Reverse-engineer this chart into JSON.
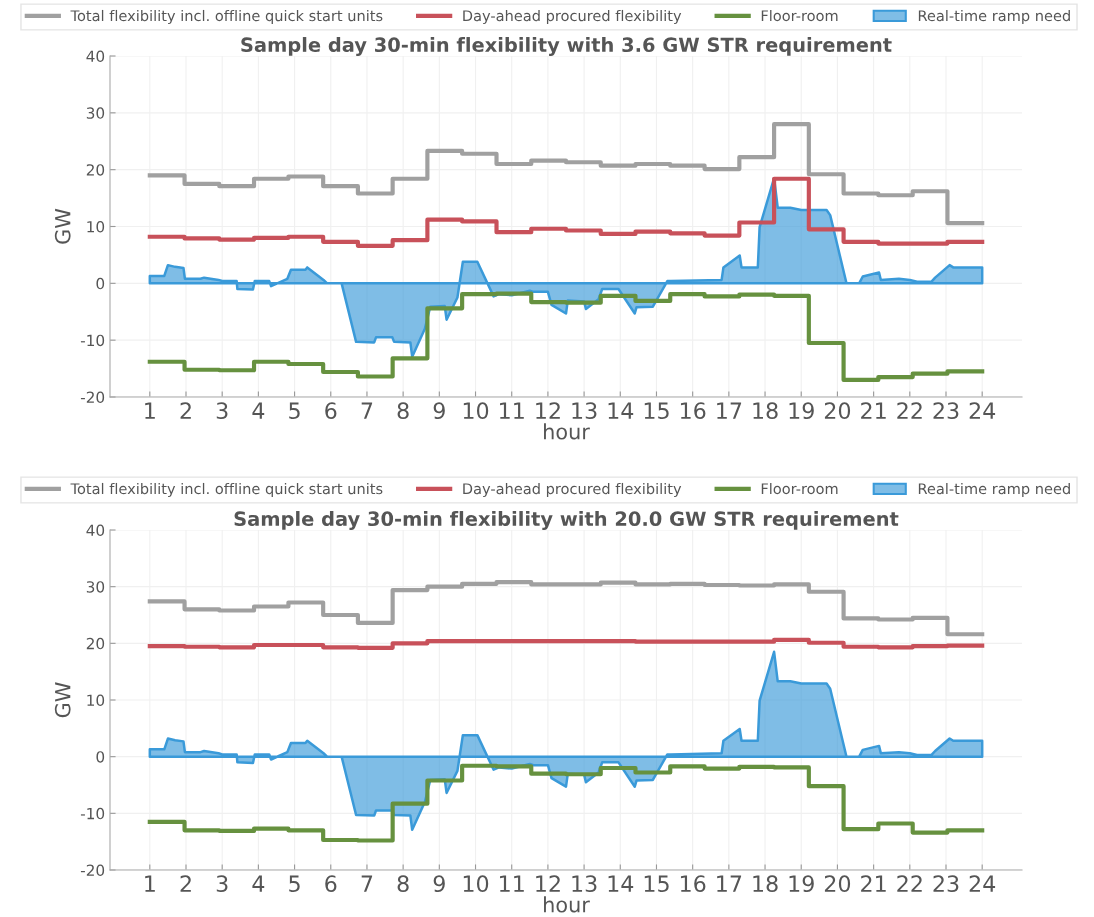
{
  "chart_data": [
    {
      "type": "line",
      "title": "Sample day 30-min flexibility with 3.6 GW STR requirement",
      "xlabel": "hour",
      "ylabel": "GW",
      "xlim": [
        -0.1,
        25.1
      ],
      "xticks": [
        1,
        2,
        3,
        4,
        5,
        6,
        7,
        8,
        9,
        10,
        11,
        12,
        13,
        14,
        15,
        16,
        17,
        18,
        19,
        20,
        21,
        22,
        23,
        24
      ],
      "ylim": [
        -20,
        40
      ],
      "yticks": [
        -20,
        -10,
        0,
        10,
        20,
        30,
        40
      ],
      "grid": true,
      "legend": "top",
      "series": [
        {
          "name": "Total flexibility incl. offline quick start units",
          "type": "step",
          "color": "#a0a0a0",
          "x": [
            1,
            1.96,
            2.92,
            3.88,
            4.83,
            5.79,
            6.75,
            7.71,
            8.67,
            9.63,
            10.58,
            11.54,
            12.5,
            13.46,
            14.42,
            15.38,
            16.33,
            17.29,
            18.25,
            19.21,
            20.17,
            21.13,
            22.08,
            23.04,
            24
          ],
          "values": [
            19,
            17.5,
            17.1,
            18.4,
            18.8,
            17.1,
            15.8,
            18.4,
            23.3,
            22.8,
            21,
            21.6,
            21.3,
            20.7,
            21,
            20.7,
            20.1,
            22.2,
            28,
            19.2,
            15.8,
            15.5,
            16.2,
            10.6,
            10.6
          ]
        },
        {
          "name": "Day-ahead procured flexibility",
          "type": "step",
          "color": "#c8515a",
          "x": [
            1,
            1.96,
            2.92,
            3.88,
            4.83,
            5.79,
            6.75,
            7.71,
            8.67,
            9.63,
            10.58,
            11.54,
            12.5,
            13.46,
            14.42,
            15.38,
            16.33,
            17.29,
            18.25,
            19.21,
            20.17,
            21.13,
            22.08,
            23.04,
            24
          ],
          "values": [
            8.2,
            7.9,
            7.7,
            8,
            8.2,
            7.3,
            6.6,
            7.6,
            11.2,
            10.9,
            9,
            9.6,
            9.3,
            8.7,
            9.1,
            8.8,
            8.4,
            10.7,
            18.4,
            9.5,
            7.3,
            7,
            7,
            7.3,
            7.3
          ]
        },
        {
          "name": "Floor-room",
          "type": "step",
          "color": "#66913f",
          "x": [
            1,
            1.96,
            2.92,
            3.88,
            4.83,
            5.79,
            6.75,
            7.71,
            8.67,
            9.63,
            10.58,
            11.54,
            12.5,
            13.46,
            14.42,
            15.38,
            16.33,
            17.29,
            18.25,
            19.21,
            20.17,
            21.13,
            22.08,
            23.04,
            24
          ],
          "values": [
            -13.8,
            -15.2,
            -15.3,
            -13.8,
            -14.2,
            -15.6,
            -16.4,
            -13.2,
            -4.4,
            -1.9,
            -1.8,
            -3.3,
            -3.4,
            -2.2,
            -3.1,
            -1.9,
            -2.3,
            -2,
            -2.2,
            -10.5,
            -17,
            -16.5,
            -15.9,
            -15.5,
            -15.5
          ]
        },
        {
          "name": "Real-time ramp need",
          "type": "area",
          "color": "#3a9ad9",
          "x": [
            1,
            1.4,
            1.5,
            1.7,
            1.93,
            1.97,
            2.4,
            2.5,
            2.9,
            3,
            3.4,
            3.42,
            3.85,
            3.9,
            4.3,
            4.35,
            4.8,
            4.9,
            5.3,
            5.35,
            5.8,
            5.9,
            6.3,
            6.7,
            7.2,
            7.25,
            7.7,
            7.75,
            8.2,
            8.25,
            8.6,
            8.75,
            9.15,
            9.2,
            9.5,
            9.65,
            10.05,
            10.5,
            10.65,
            11,
            11.5,
            11.6,
            12,
            12.1,
            12.5,
            12.55,
            13,
            13.05,
            13.4,
            13.5,
            13.95,
            14.4,
            14.45,
            14.9,
            15.3,
            15.4,
            16.8,
            16.85,
            17.3,
            17.35,
            17.8,
            17.85,
            18.25,
            18.35,
            18.7,
            19,
            19.7,
            19.8,
            20.25,
            20.6,
            20.7,
            21.15,
            21.2,
            21.7,
            22,
            22.2,
            22.6,
            22.7,
            23.1,
            23.2,
            24
          ],
          "values": [
            1.3,
            1.3,
            3.2,
            2.9,
            2.7,
            0.8,
            0.8,
            1,
            0.6,
            0.4,
            0.4,
            -1,
            -1.1,
            0.4,
            0.4,
            -0.5,
            0.8,
            2.4,
            2.4,
            2.8,
            0.6,
            0,
            0,
            -10.3,
            -10.4,
            -9.5,
            -9.5,
            -10.3,
            -10.4,
            -12.9,
            -8,
            -4.1,
            -4,
            -6.4,
            -2.5,
            3.8,
            3.8,
            -2.3,
            -1.9,
            -2.1,
            -1.3,
            -1.5,
            -1.5,
            -3.8,
            -5.3,
            -3,
            -3.2,
            -4.5,
            -2.8,
            -1,
            -1,
            -5.3,
            -4.2,
            -4.1,
            0.4,
            0.4,
            0.6,
            2.8,
            4.9,
            2.8,
            2.8,
            9.9,
            18.5,
            13.3,
            13.3,
            12.9,
            12.9,
            12,
            0,
            0,
            1.2,
            1.9,
            0.6,
            0.8,
            0.6,
            0.3,
            0.3,
            1,
            3.2,
            2.8,
            2.8
          ]
        }
      ]
    },
    {
      "type": "line",
      "title": "Sample day 30-min flexibility with 20.0 GW STR requirement",
      "xlabel": "hour",
      "ylabel": "GW",
      "xlim": [
        -0.1,
        25.1
      ],
      "xticks": [
        1,
        2,
        3,
        4,
        5,
        6,
        7,
        8,
        9,
        10,
        11,
        12,
        13,
        14,
        15,
        16,
        17,
        18,
        19,
        20,
        21,
        22,
        23,
        24
      ],
      "ylim": [
        -20,
        40
      ],
      "yticks": [
        -20,
        -10,
        0,
        10,
        20,
        30,
        40
      ],
      "grid": true,
      "legend": "top",
      "series": [
        {
          "name": "Total flexibility incl. offline quick start units",
          "type": "step",
          "color": "#a0a0a0",
          "x": [
            1,
            1.96,
            2.92,
            3.88,
            4.83,
            5.79,
            6.75,
            7.71,
            8.67,
            9.63,
            10.58,
            11.54,
            12.5,
            13.46,
            14.42,
            15.38,
            16.33,
            17.29,
            18.25,
            19.21,
            20.17,
            21.13,
            22.08,
            23.04,
            24
          ],
          "values": [
            27.4,
            26,
            25.8,
            26.5,
            27.2,
            25,
            23.6,
            29.4,
            30,
            30.5,
            30.8,
            30.4,
            30.4,
            30.7,
            30.4,
            30.5,
            30.3,
            30.2,
            30.4,
            29.1,
            24.4,
            24.2,
            24.5,
            21.6,
            21.6
          ]
        },
        {
          "name": "Day-ahead procured flexibility",
          "type": "step",
          "color": "#c8515a",
          "x": [
            1,
            1.96,
            2.92,
            3.88,
            4.83,
            5.79,
            6.75,
            7.71,
            8.67,
            9.63,
            10.58,
            11.54,
            12.5,
            13.46,
            14.42,
            15.38,
            16.33,
            17.29,
            18.25,
            19.21,
            20.17,
            21.13,
            22.08,
            23.04,
            24
          ],
          "values": [
            19.5,
            19.4,
            19.3,
            19.7,
            19.7,
            19.3,
            19.2,
            20,
            20.4,
            20.4,
            20.4,
            20.4,
            20.4,
            20.4,
            20.3,
            20.3,
            20.3,
            20.3,
            20.6,
            20.1,
            19.4,
            19.3,
            19.5,
            19.6,
            19.6
          ]
        },
        {
          "name": "Floor-room",
          "type": "step",
          "color": "#66913f",
          "x": [
            1,
            1.96,
            2.92,
            3.88,
            4.83,
            5.79,
            6.75,
            7.71,
            8.67,
            9.63,
            10.58,
            11.54,
            12.5,
            13.46,
            14.42,
            15.38,
            16.33,
            17.29,
            18.25,
            19.21,
            20.17,
            21.13,
            22.08,
            23.04,
            24
          ],
          "values": [
            -11.5,
            -13,
            -13.1,
            -12.7,
            -13,
            -14.7,
            -14.8,
            -8.3,
            -4.2,
            -1.6,
            -1.7,
            -3,
            -3.1,
            -2,
            -2.8,
            -1.7,
            -2.1,
            -1.8,
            -1.9,
            -5.2,
            -12.8,
            -11.8,
            -13.4,
            -13,
            -13
          ]
        },
        {
          "name": "Real-time ramp need",
          "type": "area",
          "color": "#3a9ad9",
          "x": [
            1,
            1.4,
            1.5,
            1.7,
            1.93,
            1.97,
            2.4,
            2.5,
            2.9,
            3,
            3.4,
            3.42,
            3.85,
            3.9,
            4.3,
            4.35,
            4.8,
            4.9,
            5.3,
            5.35,
            5.8,
            5.9,
            6.3,
            6.7,
            7.2,
            7.25,
            7.7,
            7.75,
            8.2,
            8.25,
            8.6,
            8.75,
            9.15,
            9.2,
            9.5,
            9.65,
            10.05,
            10.5,
            10.65,
            11,
            11.5,
            11.6,
            12,
            12.1,
            12.5,
            12.55,
            13,
            13.05,
            13.4,
            13.5,
            13.95,
            14.4,
            14.45,
            14.9,
            15.3,
            15.4,
            16.8,
            16.85,
            17.3,
            17.35,
            17.8,
            17.85,
            18.25,
            18.35,
            18.7,
            19,
            19.7,
            19.8,
            20.25,
            20.6,
            20.7,
            21.15,
            21.2,
            21.7,
            22,
            22.2,
            22.6,
            22.7,
            23.1,
            23.2,
            24
          ],
          "values": [
            1.3,
            1.3,
            3.2,
            2.9,
            2.7,
            0.8,
            0.8,
            1,
            0.6,
            0.4,
            0.4,
            -1,
            -1.1,
            0.4,
            0.4,
            -0.5,
            0.8,
            2.4,
            2.4,
            2.8,
            0.6,
            0,
            0,
            -10.3,
            -10.4,
            -9.5,
            -9.5,
            -10.3,
            -10.4,
            -12.9,
            -8,
            -4.1,
            -4,
            -6.4,
            -2.5,
            3.8,
            3.8,
            -2.3,
            -1.9,
            -2.1,
            -1.3,
            -1.5,
            -1.5,
            -3.8,
            -5.3,
            -3,
            -3.2,
            -4.5,
            -2.8,
            -1,
            -1,
            -5.3,
            -4.2,
            -4.1,
            0.4,
            0.4,
            0.6,
            2.8,
            4.9,
            2.8,
            2.8,
            9.9,
            18.5,
            13.3,
            13.3,
            12.9,
            12.9,
            12,
            0,
            0,
            1.2,
            1.9,
            0.6,
            0.8,
            0.6,
            0.3,
            0.3,
            1,
            3.2,
            2.8,
            2.8
          ]
        }
      ]
    }
  ]
}
